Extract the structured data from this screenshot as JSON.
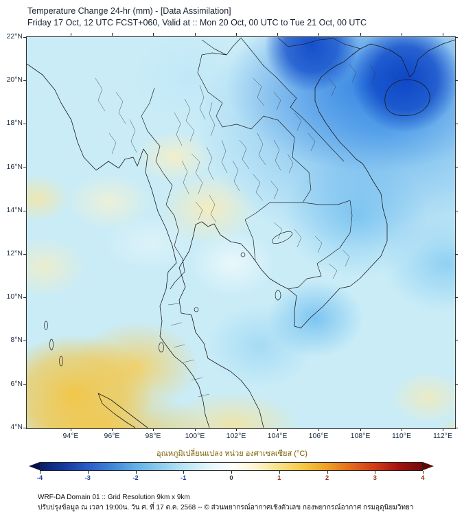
{
  "header": {
    "title": "Temperature Change 24-hr (mm) - [Data Assimilation]",
    "subtitle": "Friday 17 Oct, 12 UTC FCST+060, Valid at :: Mon 20 Oct, 00 UTC to Tue 21 Oct, 00 UTC"
  },
  "axes": {
    "y_ticks": [
      "22°N",
      "20°N",
      "18°N",
      "16°N",
      "14°N",
      "12°N",
      "10°N",
      "8°N",
      "6°N",
      "4°N"
    ],
    "x_ticks": [
      "94°E",
      "96°E",
      "98°E",
      "100°E",
      "102°E",
      "104°E",
      "106°E",
      "108°E",
      "110°E",
      "112°E"
    ]
  },
  "colorbar": {
    "label": "อุณหภูมิเปลี่ยนแปลง หน่วย องศาเซลเซียส (°C)",
    "ticks": [
      "-4",
      "-3",
      "-2",
      "-1",
      "0",
      "1",
      "2",
      "3",
      "4"
    ],
    "stops": [
      "#081f6b",
      "#16389f",
      "#2a5cc8",
      "#3f86d8",
      "#63b0e6",
      "#8ccbee",
      "#b9e4f5",
      "#e2f4fb",
      "#ffffff",
      "#fdf4d2",
      "#f8e288",
      "#f5c842",
      "#efa125",
      "#e46a1e",
      "#d23c18",
      "#a41310",
      "#740a0a"
    ],
    "left_arrow_color": "#050f4a",
    "right_arrow_color": "#5c0606"
  },
  "footer": {
    "line1": "WRF-DA Domain 01 :: Grid Resolution 9km x 9km",
    "line2": "ปรับปรุงข้อมูล ณ เวลา 19:00น. วัน ศ. ที่ 17 ต.ค. 2568 -- © ส่วนพยากรณ์อากาศเชิงตัวเลข กองพยากรณ์อากาศ กรมอุตุนิยมวิทยา"
  },
  "palette": {
    "title_color": "#15202e",
    "axis_label_color": "#1a2b3c",
    "colorbar_label_color": "#7a6000",
    "strong_cooling": "#0a46c8",
    "moderate_cooling": "#5cace4",
    "light_cooling": "#c9ecf7",
    "neutral": "#ffffff",
    "light_warming": "#f8eec0",
    "moderate_warming": "#f4c440"
  },
  "map_summary": {
    "type": "filled-contour temperature-change map",
    "domain": "Thailand / Indochina, 4°N–22°N, ~92°E–112.5°E",
    "regions": [
      {
        "area": "Northern Vietnam, Gulf of Tonkin and south China coast",
        "change_c": "-3 to -4"
      },
      {
        "area": "Laos and central Vietnam coast",
        "change_c": "-1 to -2"
      },
      {
        "area": "Most sea areas and Thailand",
        "change_c": "0 to -1"
      },
      {
        "area": "Central Thailand patches",
        "change_c": "0 to +0.5"
      },
      {
        "area": "Andaman Sea and bottom-left corner",
        "change_c": "+1 to +2"
      },
      {
        "area": "Scattered bottom-right patches",
        "change_c": "0 to +1"
      }
    ]
  }
}
